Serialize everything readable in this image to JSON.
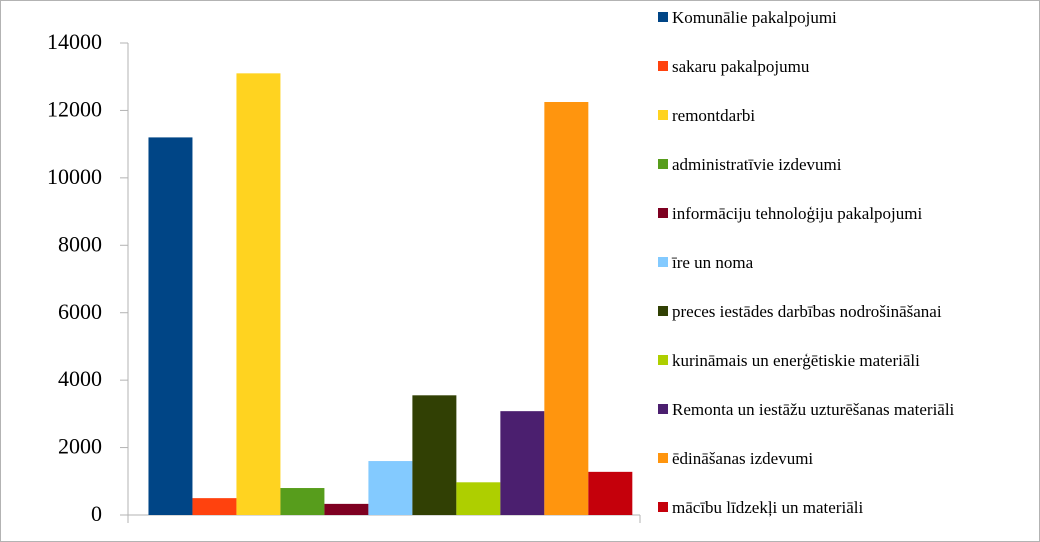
{
  "chart_data": {
    "type": "bar",
    "categories": [
      null
    ],
    "series": [
      {
        "name": "Komunālie pakalpojumi",
        "color": "#004586",
        "values": [
          11200
        ]
      },
      {
        "name": "sakaru pakalpojumu",
        "color": "#ff420e",
        "values": [
          500
        ]
      },
      {
        "name": "remontdarbi",
        "color": "#ffd320",
        "values": [
          13100
        ]
      },
      {
        "name": "administratīvie izdevumi",
        "color": "#579d1c",
        "values": [
          800
        ]
      },
      {
        "name": "informāciju tehnoloģiju pakalpojumi",
        "color": "#7e0021",
        "values": [
          330
        ]
      },
      {
        "name": "īre un noma",
        "color": "#83caff",
        "values": [
          1600
        ]
      },
      {
        "name": "preces iestādes darbības nodrošināšanai",
        "color": "#314004",
        "values": [
          3550
        ]
      },
      {
        "name": "kurināmais  un enerģētiskie materiāli",
        "color": "#aecf00",
        "values": [
          970
        ]
      },
      {
        "name": "Remonta un iestāžu uzturēšanas materiāli",
        "color": "#4b1f6f",
        "values": [
          3080
        ]
      },
      {
        "name": "ēdināšanas izdevumi",
        "color": "#ff950e",
        "values": [
          12250
        ]
      },
      {
        "name": "mācību līdzekļi un materiāli",
        "color": "#c5000b",
        "values": [
          1280
        ]
      }
    ],
    "ylim": [
      0,
      14000
    ],
    "yticks": [
      0,
      2000,
      4000,
      6000,
      8000,
      10000,
      12000,
      14000
    ],
    "legend": "right",
    "grid": false
  }
}
